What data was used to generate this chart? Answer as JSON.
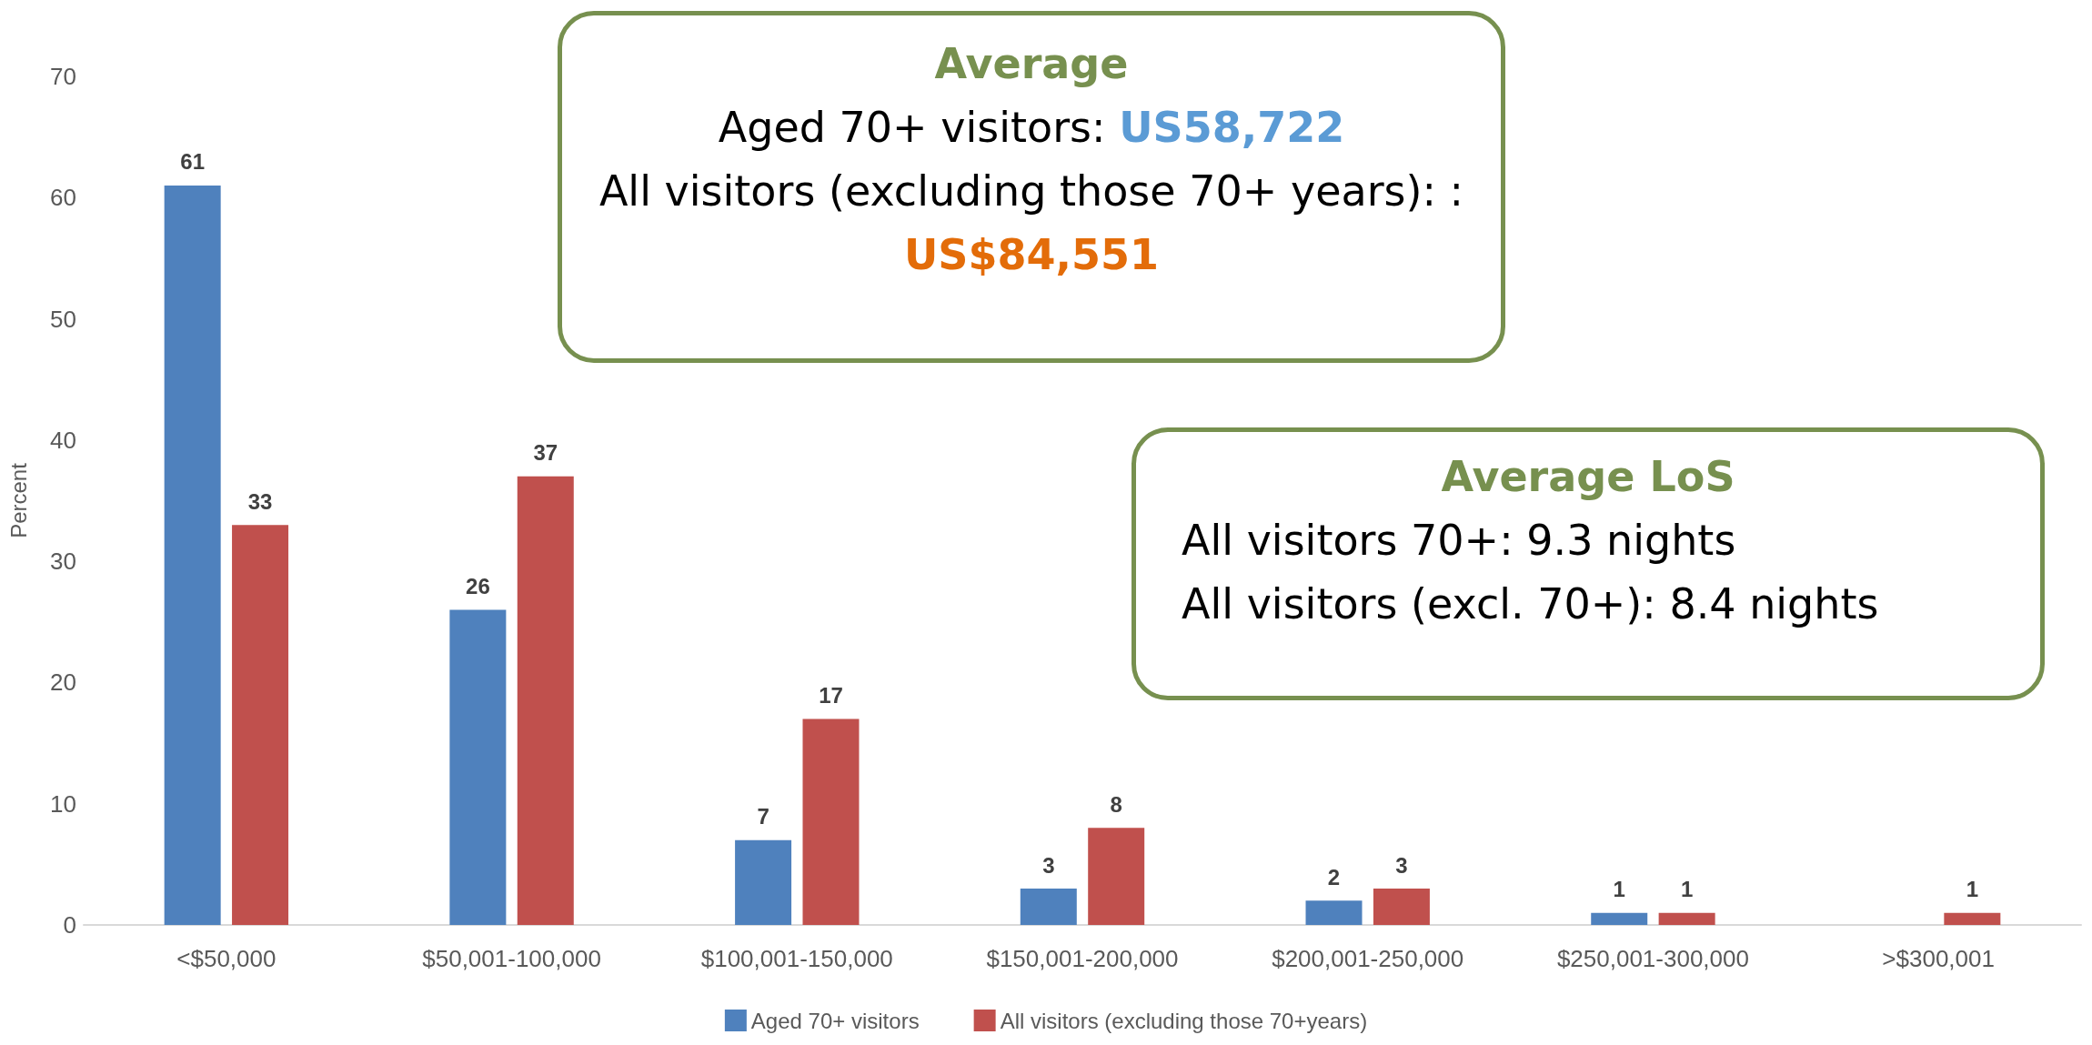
{
  "chart_data": {
    "type": "bar",
    "categories": [
      "<$50,000",
      "$50,001-100,000",
      "$100,001-150,000",
      "$150,001-200,000",
      "$200,001-250,000",
      "$250,001-300,000",
      ">$300,001"
    ],
    "series": [
      {
        "name": "Aged 70+ visitors",
        "color": "#4f81bd",
        "values": [
          61,
          26,
          7,
          3,
          2,
          1,
          null
        ]
      },
      {
        "name": "All visitors (excluding those 70+years)",
        "color": "#c0504d",
        "values": [
          33,
          37,
          17,
          8,
          3,
          1,
          1
        ]
      }
    ],
    "ylabel": "Percent",
    "ylim": [
      0,
      70
    ],
    "yticks": [
      0,
      10,
      20,
      30,
      40,
      50,
      60,
      70
    ],
    "grid": false,
    "legend": "bottom",
    "data_labels": true,
    "annotations": [
      "Average",
      "Aged 70+ visitors: US58,722",
      "All visitors (excluding those 70+ years): : US$84,551",
      "Average LoS",
      "All visitors 70+: 9.3 nights",
      "All visitors (excl. 70+): 8.4 nights"
    ]
  }
}
